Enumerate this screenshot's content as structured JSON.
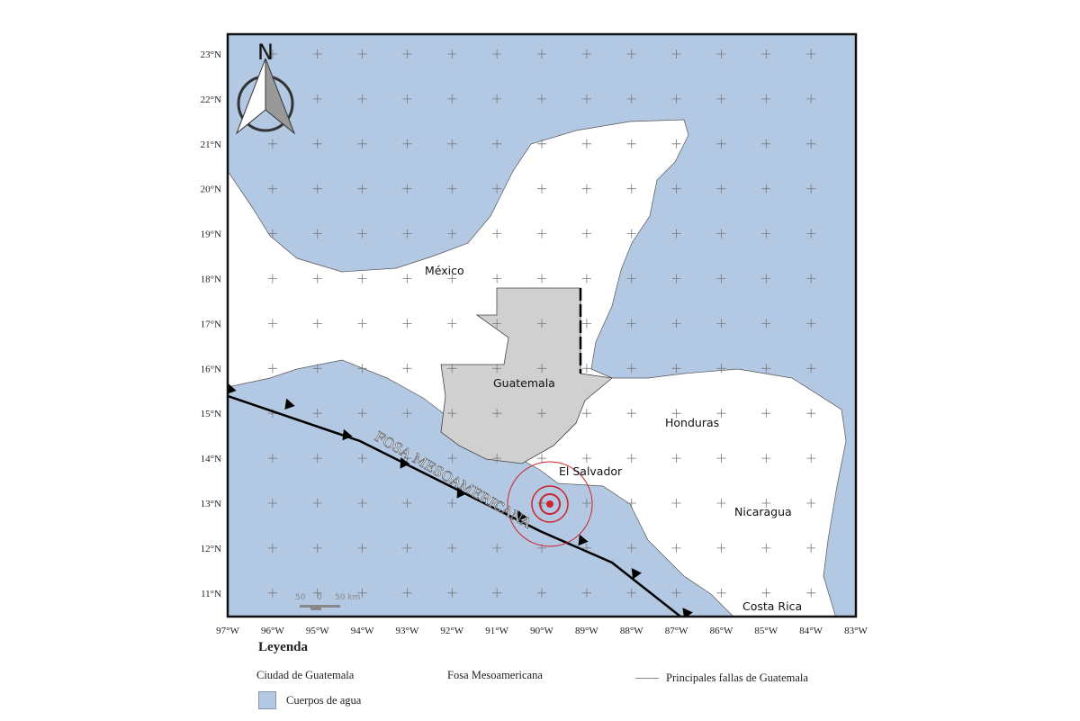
{
  "map": {
    "lat_ticks": [
      "23°N",
      "22°N",
      "21°N",
      "20°N",
      "19°N",
      "18°N",
      "17°N",
      "16°N",
      "15°N",
      "14°N",
      "13°N",
      "12°N",
      "11°N"
    ],
    "lon_ticks": [
      "97°W",
      "96°W",
      "95°W",
      "94°W",
      "93°W",
      "92°W",
      "91°W",
      "90°W",
      "89°W",
      "88°W",
      "87°W",
      "86°W",
      "85°W",
      "84°W",
      "83°W"
    ],
    "north_label": "N",
    "countries": {
      "mexico": "México",
      "guatemala": "Guatemala",
      "honduras": "Honduras",
      "el_salvador": "El Salvador",
      "nicaragua": "Nicaragua",
      "costa_rica": "Costa Rica"
    },
    "trench_label": "FOSA MESOAMERICANA",
    "scale": {
      "left": "50",
      "mid": "0",
      "right": "50 km"
    },
    "colors": {
      "water": "#b3c8e2",
      "land": "#ffffff",
      "guatemala": "#d0d0d0",
      "epicenter": "#d0222a",
      "trench": "#000000"
    }
  },
  "legend": {
    "title": "Leyenda",
    "items": [
      "Ciudad de Guatemala",
      "Fosa Mesoamericana",
      "Principales fallas de Guatemala",
      "Cuerpos de agua"
    ]
  }
}
